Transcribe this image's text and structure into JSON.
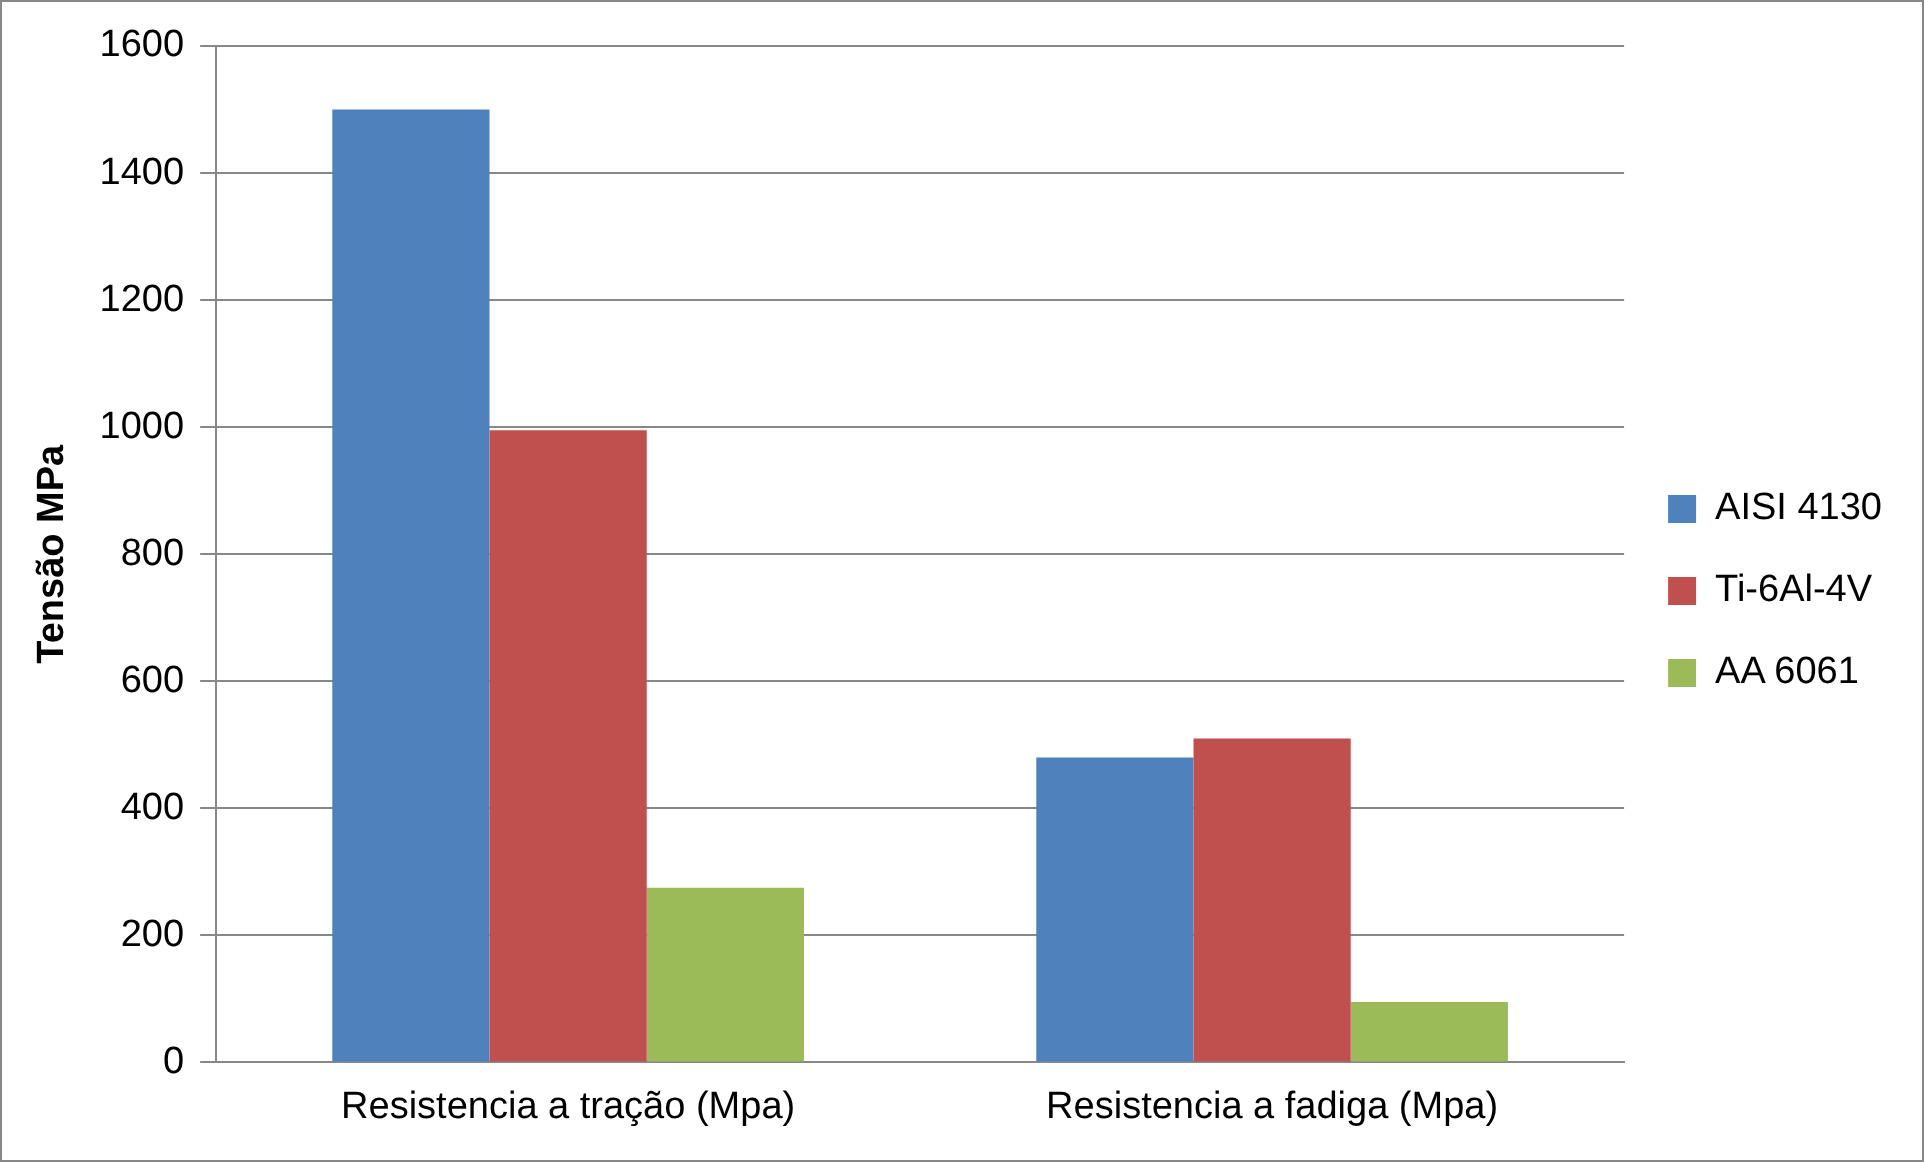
{
  "chart_data": {
    "type": "bar",
    "ylabel": "Tensão MPa",
    "categories": [
      "Resistencia a tração (Mpa)",
      "Resistencia a fadiga (Mpa)"
    ],
    "series": [
      {
        "name": "AISI 4130",
        "color": "#4f81bd",
        "values": [
          1500,
          480
        ]
      },
      {
        "name": "Ti-6Al-4V",
        "color": "#c0504d",
        "values": [
          995,
          510
        ]
      },
      {
        "name": "AA 6061",
        "color": "#9bbb59",
        "values": [
          275,
          95
        ]
      }
    ],
    "ylim": [
      0,
      1600
    ],
    "yticks": [
      0,
      200,
      400,
      600,
      800,
      1000,
      1200,
      1400,
      1600
    ],
    "grid": "y",
    "legend": "right"
  }
}
